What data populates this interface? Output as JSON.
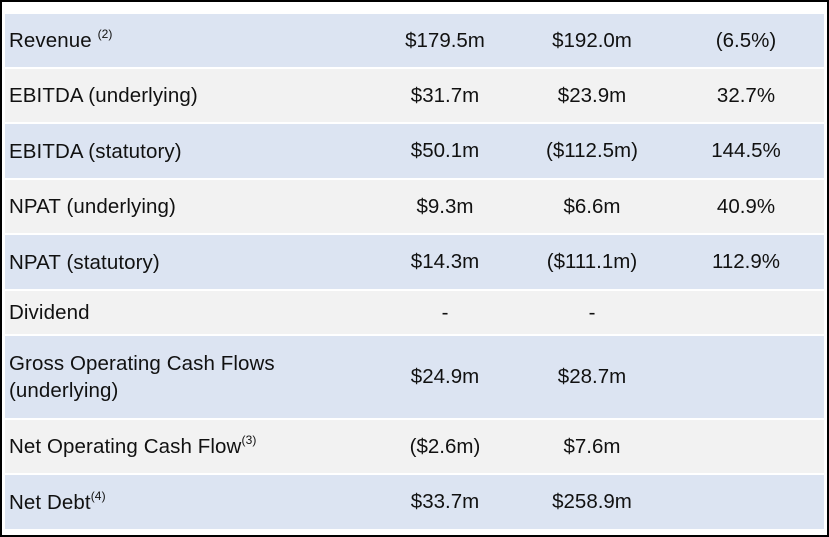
{
  "rows": [
    {
      "label": "Revenue",
      "sup": "(2)",
      "v1": "$179.5m",
      "v2": "$192.0m",
      "v3": "(6.5%)"
    },
    {
      "label": "EBITDA (underlying)",
      "sup": "",
      "v1": "$31.7m",
      "v2": "$23.9m",
      "v3": "32.7%"
    },
    {
      "label": "EBITDA (statutory)",
      "sup": "",
      "v1": "$50.1m",
      "v2": "($112.5m)",
      "v3": "144.5%"
    },
    {
      "label": "NPAT (underlying)",
      "sup": "",
      "v1": "$9.3m",
      "v2": "$6.6m",
      "v3": "40.9%"
    },
    {
      "label": "NPAT (statutory)",
      "sup": "",
      "v1": "$14.3m",
      "v2": "($111.1m)",
      "v3": "112.9%"
    },
    {
      "label": "Dividend",
      "sup": "",
      "v1": "-",
      "v2": "-",
      "v3": ""
    },
    {
      "label": "Gross Operating Cash Flows",
      "label2": "(underlying)",
      "sup": "",
      "v1": "$24.9m",
      "v2": "$28.7m",
      "v3": ""
    },
    {
      "label": "Net Operating Cash Flow",
      "sup": "(3)",
      "v1": "($2.6m)",
      "v2": "$7.6m",
      "v3": ""
    },
    {
      "label": "Net Debt",
      "sup": "(4)",
      "v1": "$33.7m",
      "v2": "$258.9m",
      "v3": ""
    }
  ],
  "colors": {
    "row_blue": "#dce4f2",
    "row_grey": "#f2f2f2",
    "border": "#000000"
  }
}
